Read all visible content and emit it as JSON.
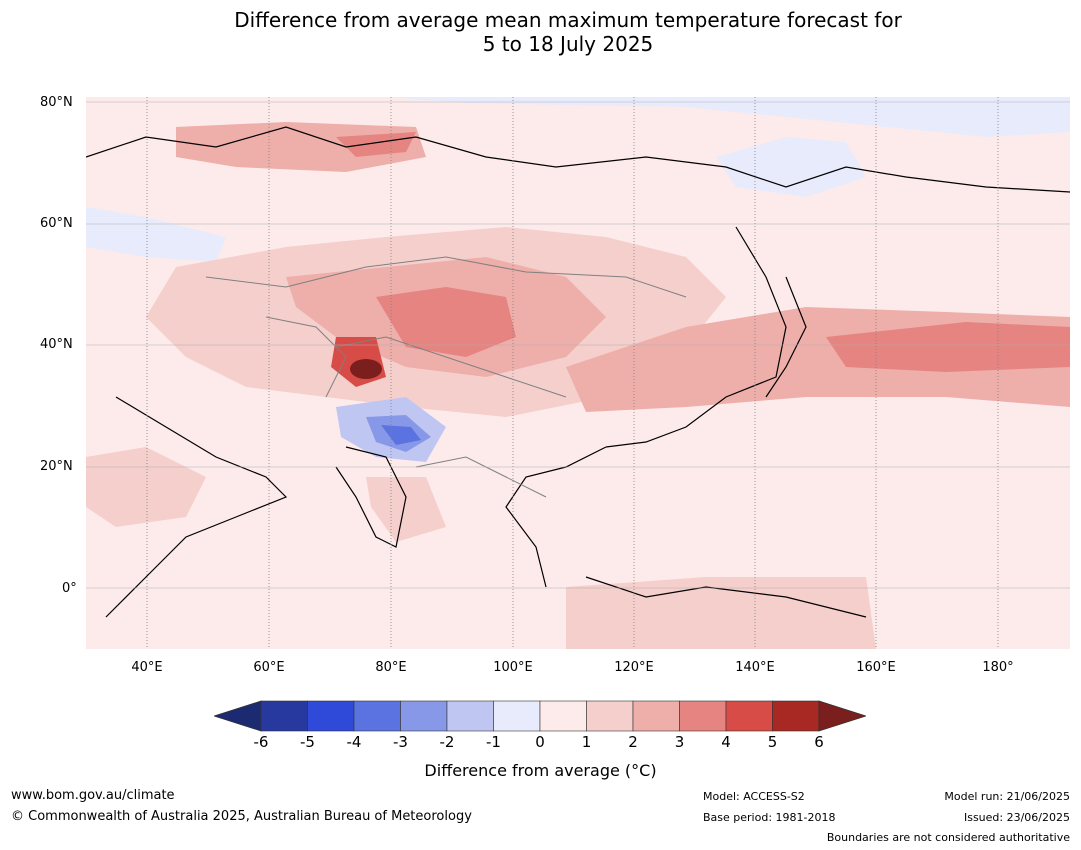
{
  "title_line1": "Difference from average mean maximum temperature forecast for",
  "title_line2": "5 to 18 July 2025",
  "lat_labels": [
    "80°N",
    "60°N",
    "40°N",
    "20°N",
    "0°"
  ],
  "lon_labels": [
    "40°E",
    "60°E",
    "80°E",
    "100°E",
    "120°E",
    "140°E",
    "160°E",
    "180°"
  ],
  "colorbar": {
    "ticks": [
      "-6",
      "-5",
      "-4",
      "-3",
      "-2",
      "-1",
      "0",
      "1",
      "2",
      "3",
      "4",
      "5",
      "6"
    ],
    "colors": [
      "#27399e",
      "#2f4ad9",
      "#5b73e0",
      "#8898e8",
      "#bfc6f2",
      "#e8ebfb",
      "#fcebea",
      "#f5cfcc",
      "#eeaeaa",
      "#e58481",
      "#d84c47",
      "#a82824"
    ],
    "low_extend_color": "#1c2a72",
    "high_extend_color": "#7a1f1d",
    "label": "Difference from average (°C)"
  },
  "footer": {
    "website": "www.bom.gov.au/climate",
    "copyright": "© Commonwealth of Australia 2025, Australian Bureau of Meteorology",
    "model": "Model: ACCESS-S2",
    "base_period": "Base period: 1981-2018",
    "model_run": "Model run: 21/06/2025",
    "issued": "Issued: 23/06/2025",
    "disclaimer": "Boundaries are not considered authoritative"
  }
}
